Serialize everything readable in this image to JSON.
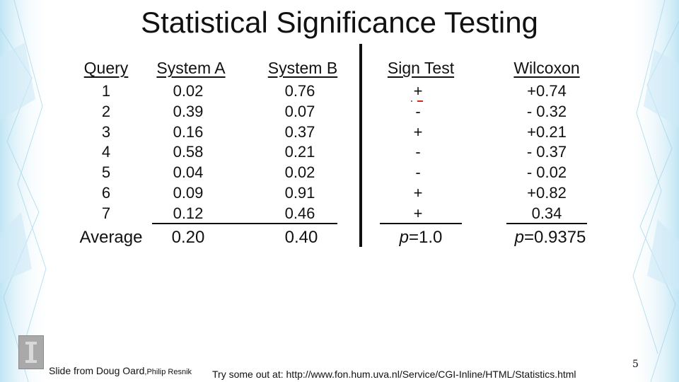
{
  "slide": {
    "title": "Statistical Significance Testing",
    "page_number": "5"
  },
  "table": {
    "headers": {
      "query": "Query",
      "system_a": "System A",
      "system_b": "System B",
      "sign_test": "Sign Test",
      "wilcoxon": "Wilcoxon"
    },
    "rows": [
      {
        "query": "1",
        "system_a": "0.02",
        "system_b": "0.76",
        "sign": "+",
        "wilcoxon": "+0.74"
      },
      {
        "query": "2",
        "system_a": "0.39",
        "system_b": "0.07",
        "sign": "-",
        "wilcoxon": "- 0.32"
      },
      {
        "query": "3",
        "system_a": "0.16",
        "system_b": "0.37",
        "sign": "+",
        "wilcoxon": "+0.21"
      },
      {
        "query": "4",
        "system_a": "0.58",
        "system_b": "0.21",
        "sign": "-",
        "wilcoxon": "- 0.37"
      },
      {
        "query": "5",
        "system_a": "0.04",
        "system_b": "0.02",
        "sign": "-",
        "wilcoxon": "- 0.02"
      },
      {
        "query": "6",
        "system_a": "0.09",
        "system_b": "0.91",
        "sign": "+",
        "wilcoxon": "+0.82"
      },
      {
        "query": "7",
        "system_a": "0.12",
        "system_b": "0.46",
        "sign": "+",
        "wilcoxon": "0.34"
      }
    ],
    "summary": {
      "label": "Average",
      "system_a": "0.20",
      "system_b": "0.40",
      "sign_p_symbol": "p",
      "sign_p_value": "=1.0",
      "wilcoxon_p_symbol": "p",
      "wilcoxon_p_value": "=0.9375"
    }
  },
  "footer": {
    "credit": "Slide from Doug Oard",
    "credit_suffix": ",Philip Resnik",
    "link": "Try some out at: http://www.fon.hum.uva.nl/Service/CGI-Inline/HTML/Statistics.html"
  },
  "colors": {
    "accent_blue": "#bfe3f2",
    "text": "#111111",
    "annotation_red": "#d9261c"
  }
}
